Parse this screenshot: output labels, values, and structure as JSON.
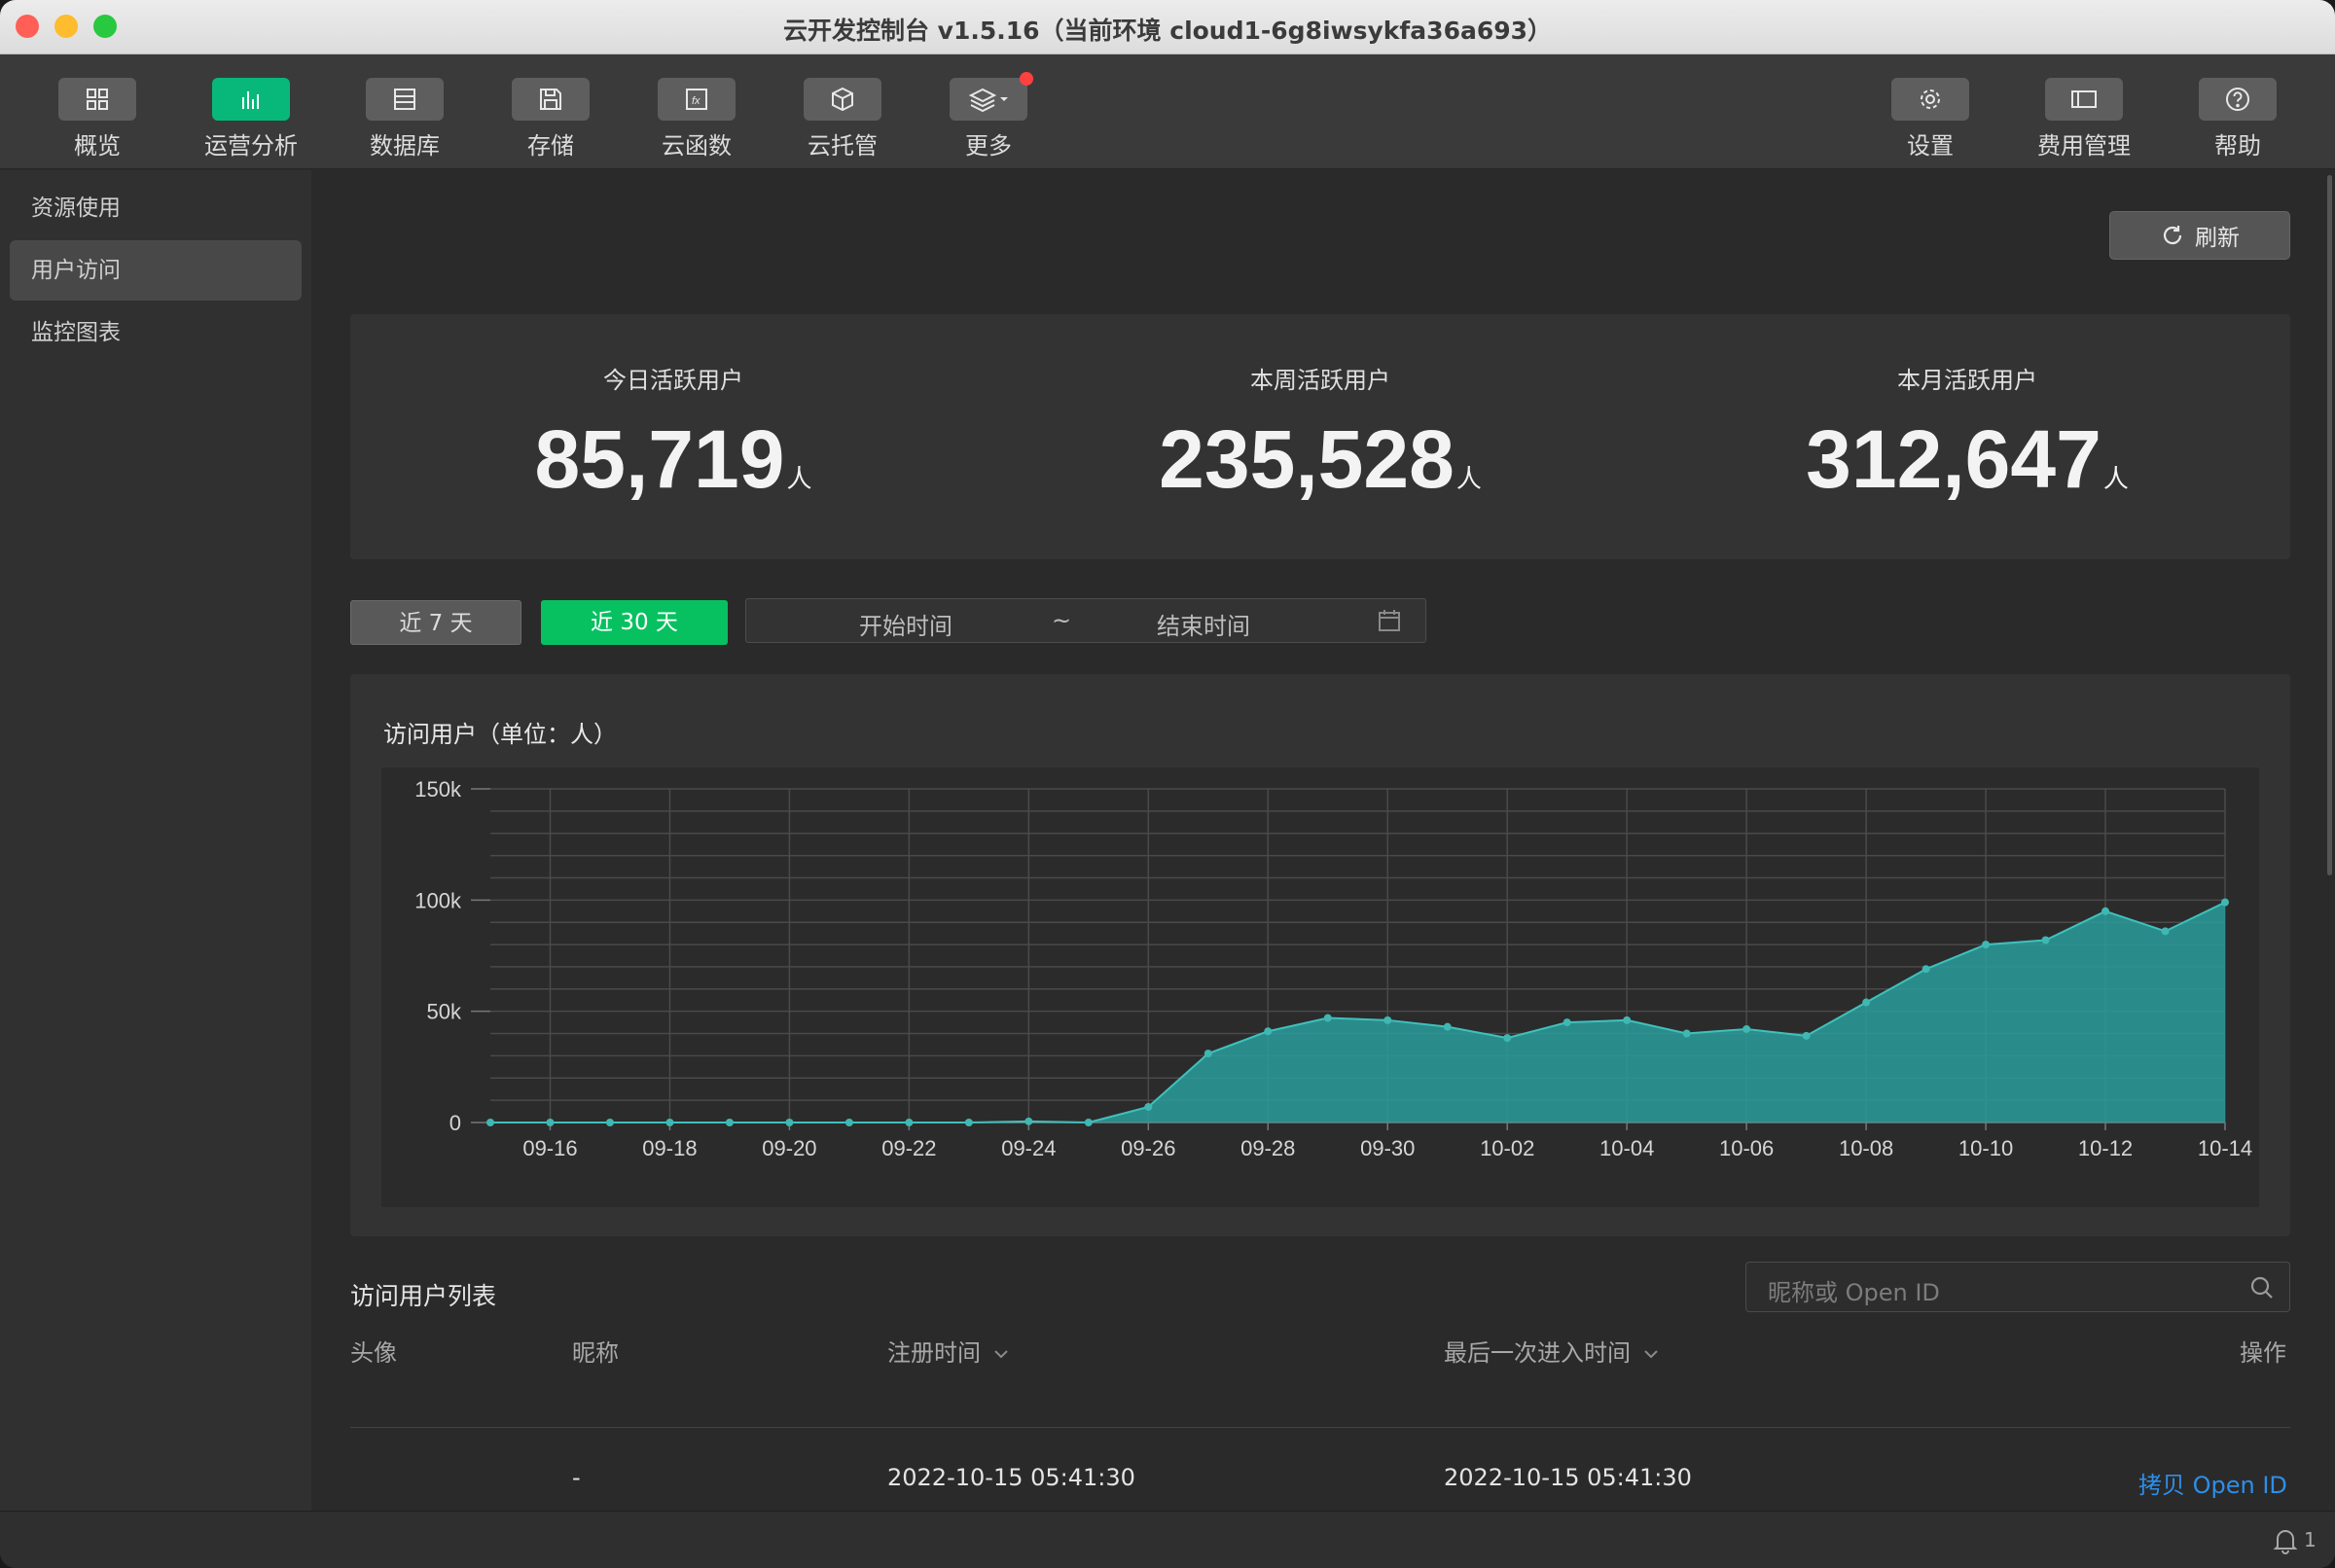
{
  "window": {
    "title": "云开发控制台 v1.5.16（当前环境 cloud1-6g8iwsykfa36a693）"
  },
  "toolbar": {
    "left": [
      {
        "label": "概览",
        "icon": "grid-icon"
      },
      {
        "label": "运营分析",
        "icon": "bar-chart-icon",
        "active": true
      },
      {
        "label": "数据库",
        "icon": "database-icon"
      },
      {
        "label": "存储",
        "icon": "storage-icon"
      },
      {
        "label": "云函数",
        "icon": "function-icon"
      },
      {
        "label": "云托管",
        "icon": "cube-icon"
      },
      {
        "label": "更多",
        "icon": "layers-icon"
      }
    ],
    "right": [
      {
        "label": "设置",
        "icon": "gear-icon"
      },
      {
        "label": "费用管理",
        "icon": "billing-icon"
      },
      {
        "label": "帮助",
        "icon": "help-icon"
      }
    ]
  },
  "sidebar": {
    "items": [
      {
        "label": "资源使用"
      },
      {
        "label": "用户访问",
        "selected": true
      },
      {
        "label": "监控图表"
      }
    ]
  },
  "refresh_label": "刷新",
  "stats": [
    {
      "label": "今日活跃用户",
      "value": "85,719",
      "unit": "人"
    },
    {
      "label": "本周活跃用户",
      "value": "235,528",
      "unit": "人"
    },
    {
      "label": "本月活跃用户",
      "value": "312,647",
      "unit": "人"
    }
  ],
  "range": {
    "seven": "近 7 天",
    "thirty": "近 30 天",
    "start_placeholder": "开始时间",
    "separator": "~",
    "end_placeholder": "结束时间"
  },
  "chart_title": "访问用户（单位：人）",
  "chart_data": {
    "type": "area",
    "x": [
      "09-15",
      "09-16",
      "09-17",
      "09-18",
      "09-19",
      "09-20",
      "09-21",
      "09-22",
      "09-23",
      "09-24",
      "09-25",
      "09-26",
      "09-27",
      "09-28",
      "09-29",
      "09-30",
      "10-01",
      "10-02",
      "10-03",
      "10-04",
      "10-05",
      "10-06",
      "10-07",
      "10-08",
      "10-09",
      "10-10",
      "10-11",
      "10-12",
      "10-13",
      "10-14"
    ],
    "x_tick_labels": [
      "09-16",
      "09-18",
      "09-20",
      "09-22",
      "09-24",
      "09-26",
      "09-28",
      "09-30",
      "10-02",
      "10-04",
      "10-06",
      "10-08",
      "10-10",
      "10-12",
      "10-14"
    ],
    "series": [
      {
        "values": [
          0,
          0,
          0,
          0,
          0,
          0,
          0,
          0,
          0,
          500,
          0,
          7000,
          31000,
          41000,
          47000,
          46000,
          43000,
          38000,
          45000,
          46000,
          40000,
          42000,
          39000,
          54000,
          69000,
          80000,
          82000,
          95000,
          86000,
          99000
        ]
      }
    ],
    "ylim": [
      0,
      150000
    ],
    "y_tick_labels": [
      "0",
      "50k",
      "100k",
      "150k"
    ],
    "grid": true,
    "color": "#2a9d9b"
  },
  "list": {
    "title": "访问用户列表",
    "search_placeholder": "昵称或 Open ID",
    "columns": {
      "avatar": "头像",
      "nickname": "昵称",
      "register": "注册时间",
      "last": "最后一次进入时间",
      "action": "操作"
    },
    "rows": [
      {
        "avatar": "",
        "nickname": "-",
        "register": "2022-10-15 05:41:30",
        "last": "2022-10-15 05:41:30",
        "action": "拷贝 Open ID"
      }
    ]
  },
  "status": {
    "notifications": "1"
  }
}
